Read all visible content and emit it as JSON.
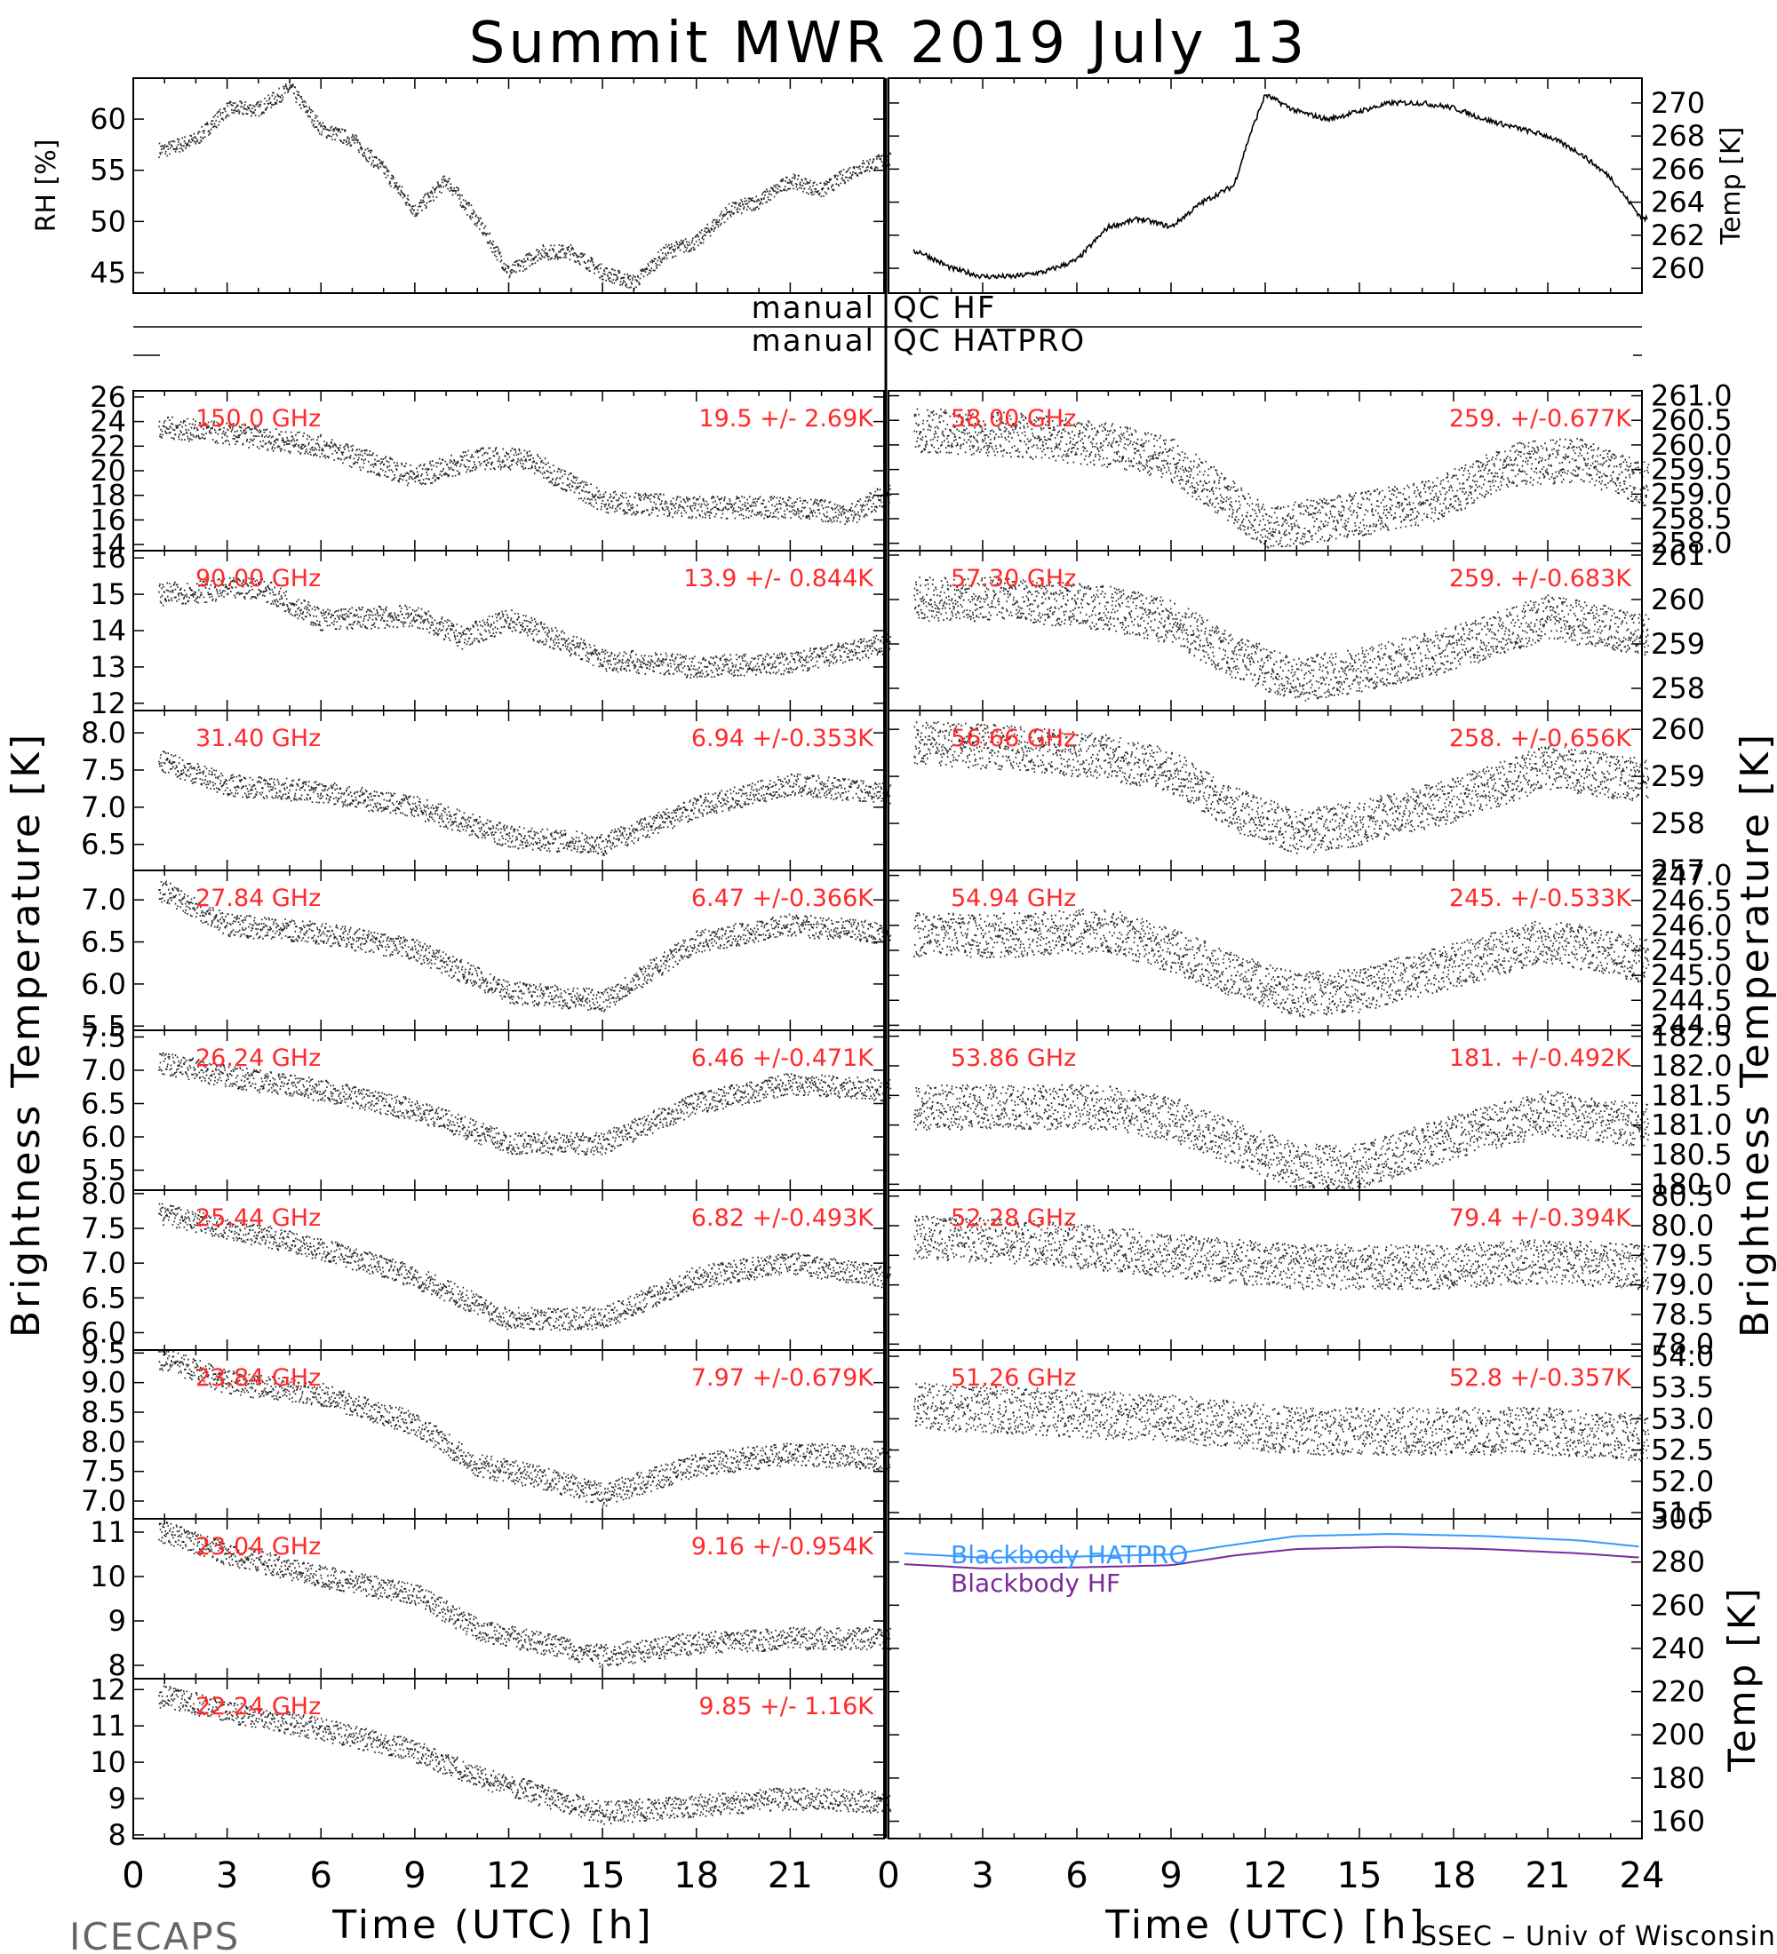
{
  "title": "Summit MWR 2019 July 13",
  "footer_left": "ICECAPS",
  "footer_right": "SSEC – Univ of Wisconsin",
  "xlabel": "Time (UTC) [h]",
  "xticks": [
    "0",
    "3",
    "6",
    "9",
    "12",
    "15",
    "18",
    "21",
    "24"
  ],
  "ylabel_big": "Brightness Temperature [K]",
  "qc": {
    "left": "manual",
    "hf": "QC HF",
    "hatpro": "QC HATPRO"
  },
  "chart_data": [
    {
      "type": "scatter",
      "ylabel": "RH [%]",
      "yticks": [
        45,
        50,
        55,
        60
      ],
      "ylim": [
        43,
        64
      ],
      "anchors": [
        [
          1,
          57
        ],
        [
          2,
          58
        ],
        [
          3,
          61
        ],
        [
          4,
          61
        ],
        [
          5,
          63
        ],
        [
          6,
          59
        ],
        [
          7,
          58
        ],
        [
          8,
          55
        ],
        [
          9,
          51
        ],
        [
          10,
          54
        ],
        [
          11,
          50
        ],
        [
          12,
          45
        ],
        [
          13,
          47
        ],
        [
          14,
          47
        ],
        [
          15,
          45
        ],
        [
          16,
          44
        ],
        [
          17,
          47
        ],
        [
          18,
          48
        ],
        [
          19,
          51
        ],
        [
          20,
          52
        ],
        [
          21,
          54
        ],
        [
          22,
          53
        ],
        [
          23,
          55
        ],
        [
          24,
          56
        ]
      ]
    },
    {
      "type": "line",
      "ylabel": "Temp [K]",
      "yticks": [
        260,
        262,
        264,
        266,
        268,
        270
      ],
      "ylim": [
        258.5,
        271.5
      ],
      "anchors": [
        [
          1,
          261
        ],
        [
          2,
          260
        ],
        [
          3,
          259.5
        ],
        [
          4,
          259.5
        ],
        [
          5,
          259.8
        ],
        [
          6,
          260.5
        ],
        [
          7,
          262.5
        ],
        [
          8,
          263
        ],
        [
          9,
          262.5
        ],
        [
          10,
          264
        ],
        [
          11,
          265
        ],
        [
          11.5,
          268
        ],
        [
          12,
          270.5
        ],
        [
          13,
          269.5
        ],
        [
          14,
          269
        ],
        [
          15,
          269.5
        ],
        [
          16,
          270
        ],
        [
          17,
          270
        ],
        [
          18,
          269.7
        ],
        [
          19,
          269
        ],
        [
          20,
          268.5
        ],
        [
          21,
          268
        ],
        [
          22,
          267
        ],
        [
          23,
          265.5
        ],
        [
          24,
          263
        ]
      ]
    },
    {
      "type": "scatter",
      "label": "150.0 GHz",
      "stat": "19.5 +/-  2.69K",
      "yticks": [
        "14",
        "16",
        "18",
        "20",
        "22",
        "24",
        "26"
      ],
      "ylim": [
        13.5,
        26.5
      ],
      "side": "left",
      "anchors": [
        [
          1,
          23.5
        ],
        [
          3,
          23
        ],
        [
          6,
          22
        ],
        [
          9,
          19.5
        ],
        [
          11,
          21
        ],
        [
          12.5,
          21
        ],
        [
          15,
          17.5
        ],
        [
          18,
          17
        ],
        [
          21,
          17
        ],
        [
          23,
          16.5
        ],
        [
          24,
          18
        ]
      ]
    },
    {
      "type": "scatter",
      "label": "90.00 GHz",
      "stat": "13.9 +/- 0.844K",
      "yticks": [
        "12",
        "13",
        "14",
        "15",
        "16"
      ],
      "ylim": [
        11.8,
        16.2
      ],
      "side": "left",
      "anchors": [
        [
          1,
          15
        ],
        [
          4,
          15.2
        ],
        [
          6,
          14.3
        ],
        [
          9,
          14.4
        ],
        [
          10.5,
          13.8
        ],
        [
          12,
          14.3
        ],
        [
          14,
          13.6
        ],
        [
          15,
          13.2
        ],
        [
          18,
          13
        ],
        [
          21,
          13.1
        ],
        [
          24,
          13.6
        ]
      ]
    },
    {
      "type": "scatter",
      "label": "31.40 GHz",
      "stat": "6.94 +/-0.353K",
      "yticks": [
        "6.5",
        "7.0",
        "7.5",
        "8.0"
      ],
      "ylim": [
        6.15,
        8.3
      ],
      "side": "left",
      "anchors": [
        [
          1,
          7.6
        ],
        [
          3,
          7.3
        ],
        [
          6,
          7.2
        ],
        [
          9,
          7.0
        ],
        [
          12,
          6.6
        ],
        [
          15,
          6.5
        ],
        [
          18,
          7.0
        ],
        [
          21,
          7.3
        ],
        [
          24,
          7.2
        ]
      ]
    },
    {
      "type": "scatter",
      "label": "27.84 GHz",
      "stat": "6.47 +/-0.366K",
      "yticks": [
        "5.5",
        "6.0",
        "6.5",
        "7.0"
      ],
      "ylim": [
        5.45,
        7.35
      ],
      "side": "left",
      "anchors": [
        [
          1,
          7.1
        ],
        [
          3,
          6.7
        ],
        [
          6,
          6.6
        ],
        [
          9,
          6.4
        ],
        [
          12,
          5.9
        ],
        [
          15,
          5.8
        ],
        [
          18,
          6.5
        ],
        [
          21,
          6.7
        ],
        [
          24,
          6.6
        ]
      ]
    },
    {
      "type": "scatter",
      "label": "26.24 GHz",
      "stat": "6.46 +/-0.471K",
      "yticks": [
        "5.5",
        "6.0",
        "6.5",
        "7.0",
        "7.5"
      ],
      "ylim": [
        5.2,
        7.6
      ],
      "side": "left",
      "anchors": [
        [
          1,
          7.1
        ],
        [
          3,
          6.9
        ],
        [
          6,
          6.7
        ],
        [
          9,
          6.4
        ],
        [
          12,
          5.9
        ],
        [
          15,
          5.9
        ],
        [
          18,
          6.5
        ],
        [
          21,
          6.8
        ],
        [
          24,
          6.7
        ]
      ]
    },
    {
      "type": "scatter",
      "label": "25.44 GHz",
      "stat": "6.82 +/-0.493K",
      "yticks": [
        "6.0",
        "6.5",
        "7.0",
        "7.5",
        "8.0"
      ],
      "ylim": [
        5.75,
        8.05
      ],
      "side": "left",
      "anchors": [
        [
          1,
          7.7
        ],
        [
          3,
          7.5
        ],
        [
          6,
          7.2
        ],
        [
          9,
          6.8
        ],
        [
          12,
          6.2
        ],
        [
          15,
          6.2
        ],
        [
          18,
          6.8
        ],
        [
          21,
          7.0
        ],
        [
          24,
          6.8
        ]
      ]
    },
    {
      "type": "scatter",
      "label": "23.84 GHz",
      "stat": "7.97 +/-0.679K",
      "yticks": [
        "7.0",
        "7.5",
        "8.0",
        "8.5",
        "9.0",
        "9.5"
      ],
      "ylim": [
        6.7,
        9.55
      ],
      "side": "left",
      "anchors": [
        [
          1,
          9.4
        ],
        [
          3,
          9.0
        ],
        [
          6,
          8.8
        ],
        [
          9,
          8.3
        ],
        [
          11,
          7.6
        ],
        [
          13,
          7.4
        ],
        [
          15,
          7.1
        ],
        [
          18,
          7.6
        ],
        [
          21,
          7.8
        ],
        [
          24,
          7.7
        ]
      ]
    },
    {
      "type": "scatter",
      "label": "23.04 GHz",
      "stat": "9.16 +/-0.954K",
      "yticks": [
        "8",
        "9",
        "10",
        "11"
      ],
      "ylim": [
        7.7,
        11.3
      ],
      "side": "left",
      "anchors": [
        [
          1,
          11
        ],
        [
          3,
          10.5
        ],
        [
          6,
          10
        ],
        [
          9,
          9.6
        ],
        [
          11,
          8.8
        ],
        [
          13,
          8.5
        ],
        [
          15,
          8.2
        ],
        [
          18,
          8.5
        ],
        [
          21,
          8.6
        ],
        [
          24,
          8.6
        ]
      ]
    },
    {
      "type": "scatter",
      "label": "22.24 GHz",
      "stat": "9.85 +/-  1.16K",
      "yticks": [
        "8",
        "9",
        "10",
        "11",
        "12"
      ],
      "ylim": [
        7.9,
        12.3
      ],
      "side": "left",
      "anchors": [
        [
          1,
          11.8
        ],
        [
          3,
          11.4
        ],
        [
          6,
          10.9
        ],
        [
          9,
          10.3
        ],
        [
          11,
          9.6
        ],
        [
          13,
          9.1
        ],
        [
          15,
          8.6
        ],
        [
          18,
          8.8
        ],
        [
          21,
          9.0
        ],
        [
          24,
          8.9
        ]
      ]
    },
    {
      "type": "scatter",
      "label": "58.00 GHz",
      "stat": "259. +/-0.677K",
      "yticks": [
        "258.0",
        "258.5",
        "259.0",
        "259.5",
        "260.0",
        "260.5",
        "261.0"
      ],
      "ylim": [
        257.85,
        261.1
      ],
      "side": "right",
      "anchors": [
        [
          1,
          260.3
        ],
        [
          4,
          260.2
        ],
        [
          7,
          260.0
        ],
        [
          9,
          259.7
        ],
        [
          11,
          258.8
        ],
        [
          12,
          258.3
        ],
        [
          14,
          258.5
        ],
        [
          17,
          258.8
        ],
        [
          20,
          259.6
        ],
        [
          22,
          259.7
        ],
        [
          24,
          259.2
        ]
      ]
    },
    {
      "type": "scatter",
      "label": "57.30 GHz",
      "stat": "259. +/-0.683K",
      "yticks": [
        "258",
        "259",
        "260",
        "261"
      ],
      "ylim": [
        257.5,
        261.1
      ],
      "side": "right",
      "anchors": [
        [
          1,
          260
        ],
        [
          4,
          260
        ],
        [
          7,
          259.8
        ],
        [
          9,
          259.5
        ],
        [
          11,
          258.7
        ],
        [
          13,
          258.2
        ],
        [
          15,
          258.4
        ],
        [
          18,
          258.9
        ],
        [
          21,
          259.6
        ],
        [
          24,
          259.2
        ]
      ]
    },
    {
      "type": "scatter",
      "label": "56.66 GHz",
      "stat": "258. +/-0.656K",
      "yticks": [
        "257",
        "258",
        "259",
        "260"
      ],
      "ylim": [
        257,
        260.4
      ],
      "side": "right",
      "anchors": [
        [
          1,
          259.7
        ],
        [
          4,
          259.6
        ],
        [
          7,
          259.4
        ],
        [
          9,
          259.1
        ],
        [
          11,
          258.3
        ],
        [
          13,
          257.8
        ],
        [
          15,
          258.0
        ],
        [
          18,
          258.5
        ],
        [
          21,
          259.2
        ],
        [
          24,
          258.9
        ]
      ]
    },
    {
      "type": "scatter",
      "label": "54.94 GHz",
      "stat": "245. +/-0.533K",
      "yticks": [
        "244.0",
        "244.5",
        "245.0",
        "245.5",
        "246.0",
        "246.5",
        "247.0"
      ],
      "ylim": [
        243.9,
        247.1
      ],
      "side": "right",
      "anchors": [
        [
          1,
          245.8
        ],
        [
          4,
          245.8
        ],
        [
          7,
          245.9
        ],
        [
          9,
          245.5
        ],
        [
          11,
          245.0
        ],
        [
          13,
          244.6
        ],
        [
          15,
          244.7
        ],
        [
          18,
          245.2
        ],
        [
          21,
          245.7
        ],
        [
          24,
          245.3
        ]
      ]
    },
    {
      "type": "scatter",
      "label": "53.86 GHz",
      "stat": "181. +/-0.492K",
      "yticks": [
        "180.0",
        "180.5",
        "181.0",
        "181.5",
        "182.0",
        "182.5"
      ],
      "ylim": [
        179.9,
        182.6
      ],
      "side": "right",
      "anchors": [
        [
          1,
          181.3
        ],
        [
          4,
          181.3
        ],
        [
          7,
          181.3
        ],
        [
          9,
          181.1
        ],
        [
          11,
          180.7
        ],
        [
          13,
          180.3
        ],
        [
          15,
          180.3
        ],
        [
          18,
          180.8
        ],
        [
          21,
          181.2
        ],
        [
          24,
          181.0
        ]
      ]
    },
    {
      "type": "scatter",
      "label": "52.28 GHz",
      "stat": "79.4 +/-0.394K",
      "yticks": [
        "78.0",
        "78.5",
        "79.0",
        "79.5",
        "80.0",
        "80.5"
      ],
      "ylim": [
        77.9,
        80.6
      ],
      "side": "right",
      "anchors": [
        [
          1,
          79.8
        ],
        [
          5,
          79.7
        ],
        [
          9,
          79.5
        ],
        [
          13,
          79.3
        ],
        [
          17,
          79.3
        ],
        [
          21,
          79.4
        ],
        [
          24,
          79.3
        ]
      ]
    },
    {
      "type": "scatter",
      "label": "51.26 GHz",
      "stat": "52.8 +/-0.357K",
      "yticks": [
        "51.5",
        "52.0",
        "52.5",
        "53.0",
        "53.5",
        "54.0"
      ],
      "ylim": [
        51.4,
        54.1
      ],
      "side": "right",
      "anchors": [
        [
          1,
          53.2
        ],
        [
          5,
          53.1
        ],
        [
          9,
          53.0
        ],
        [
          13,
          52.8
        ],
        [
          17,
          52.8
        ],
        [
          21,
          52.8
        ],
        [
          24,
          52.7
        ]
      ]
    },
    {
      "type": "line",
      "ylabel": "Temp [K]",
      "yticks": [
        "160",
        "180",
        "200",
        "220",
        "240",
        "260",
        "280",
        "300"
      ],
      "ylim": [
        152,
        300
      ],
      "series": [
        {
          "name": "Blackbody HATPRO",
          "color": "#3399ff",
          "values": [
            [
              0.5,
              284
            ],
            [
              3,
              282
            ],
            [
              6,
              282.5
            ],
            [
              9,
              283.5
            ],
            [
              11,
              288
            ],
            [
              13,
              292
            ],
            [
              16,
              293
            ],
            [
              19,
              292
            ],
            [
              22,
              290
            ],
            [
              24,
              287
            ]
          ]
        },
        {
          "name": "Blackbody HF",
          "color": "#7a2a9a",
          "values": [
            [
              0.5,
              279
            ],
            [
              3,
              277
            ],
            [
              6,
              277.5
            ],
            [
              9,
              278.5
            ],
            [
              11,
              283
            ],
            [
              13,
              286
            ],
            [
              16,
              287
            ],
            [
              19,
              286
            ],
            [
              22,
              284
            ],
            [
              24,
              282
            ]
          ]
        }
      ]
    }
  ]
}
